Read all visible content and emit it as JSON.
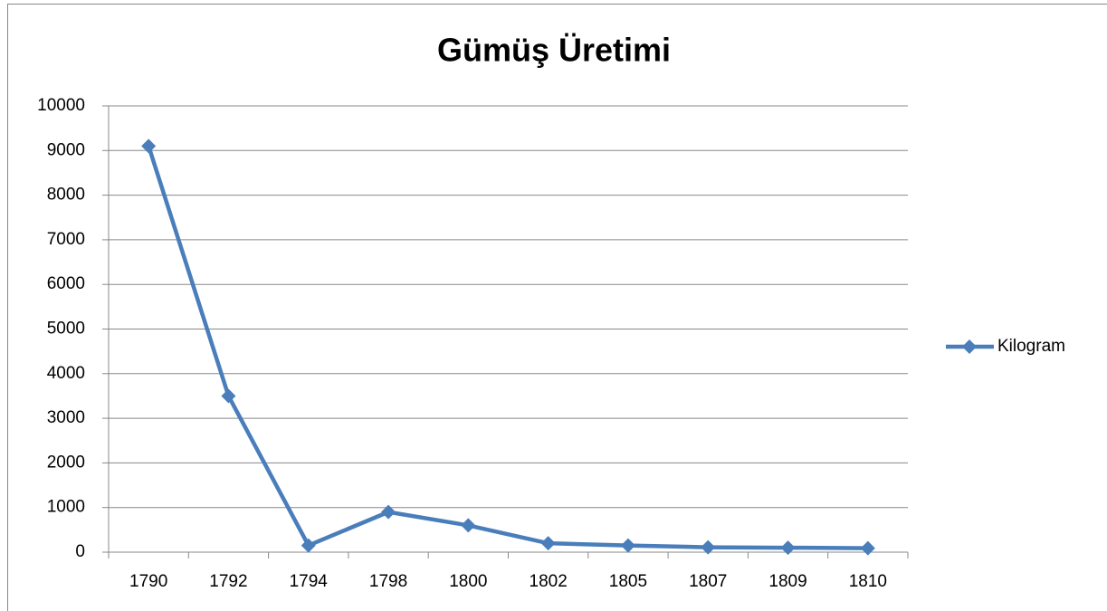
{
  "chart_data": {
    "type": "line",
    "title": "Gümüş Üretimi",
    "categories": [
      "1790",
      "1792",
      "1794",
      "1798",
      "1800",
      "1802",
      "1805",
      "1807",
      "1809",
      "1810"
    ],
    "series": [
      {
        "name": "Kilogram",
        "color": "#4a7ebb",
        "values": [
          9100,
          3500,
          150,
          900,
          600,
          200,
          150,
          110,
          100,
          90
        ]
      }
    ],
    "ylim": [
      0,
      10000
    ],
    "yticks": [
      0,
      1000,
      2000,
      3000,
      4000,
      5000,
      6000,
      7000,
      8000,
      9000,
      10000
    ],
    "grid": true,
    "legend": "right"
  }
}
